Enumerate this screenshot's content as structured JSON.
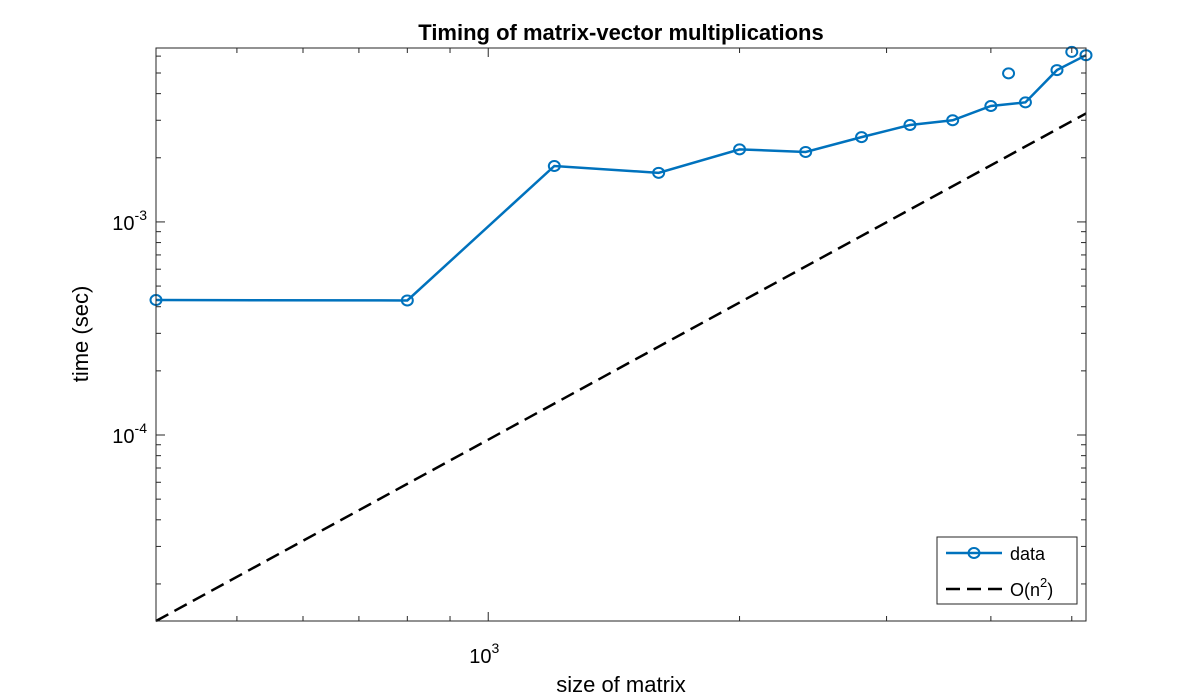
{
  "chart_data": {
    "type": "line",
    "title": "Timing of matrix-vector multiplications",
    "xlabel": "size of matrix",
    "ylabel": "time (sec)",
    "xscale": "log",
    "yscale": "log",
    "xlim": [
      400,
      5200
    ],
    "ylim": [
      1.34e-05,
      0.00655
    ],
    "x_ticks": [
      {
        "value": 1000,
        "base": "10",
        "exp": "3"
      }
    ],
    "y_ticks": [
      {
        "value": 0.0001,
        "base": "10",
        "exp": "-4"
      },
      {
        "value": 0.001,
        "base": "10",
        "exp": "-3"
      }
    ],
    "grid": false,
    "legend_position": "bottom-right",
    "series": [
      {
        "name": "data",
        "style": "solid-circles",
        "color": "#0072BD",
        "x": [
          400,
          800,
          1200,
          1600,
          2000,
          2400,
          2800,
          3200,
          3600,
          4000,
          4400,
          4800,
          5200
        ],
        "y": [
          0.00043,
          0.000428,
          0.00183,
          0.0017,
          0.00219,
          0.00213,
          0.0025,
          0.00285,
          0.003,
          0.0035,
          0.00364,
          0.00516,
          0.00606
        ]
      },
      {
        "name": "O(n²)",
        "legend_label": {
          "text": "O(n",
          "sup": "2",
          "close": ")"
        },
        "style": "dashed",
        "color": "#000000",
        "x": [
          400,
          5200
        ],
        "y": [
          1.34e-05,
          0.00323
        ]
      }
    ],
    "extra_points_data": {
      "x": [
        4200,
        5000
      ],
      "y": [
        0.00498,
        0.00628
      ]
    }
  }
}
